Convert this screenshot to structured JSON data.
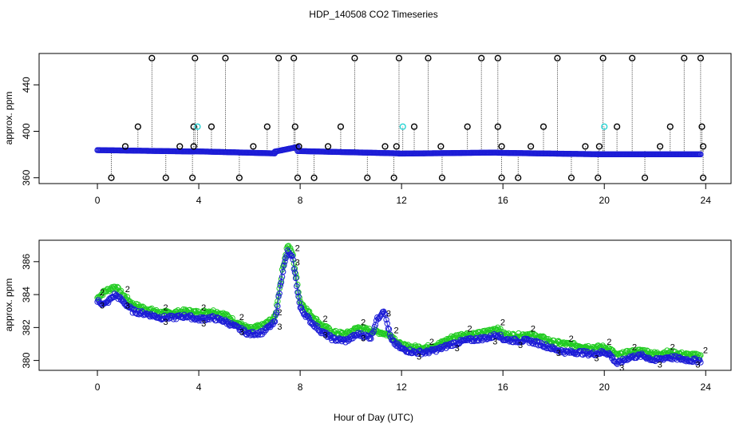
{
  "title": "HDP_140508  CO2 Timeseries",
  "xlabel": "Hour of Day (UTC)",
  "colors": {
    "black": "#000000",
    "blue": "#1c1cd6",
    "green": "#22cc22",
    "cyan": "#29d4d4"
  },
  "chart_data": [
    {
      "type": "scatter",
      "name": "upper-panel",
      "ylabel": "approx. ppm",
      "xlim": [
        -2.3,
        25
      ],
      "ylim": [
        355,
        467
      ],
      "x_ticks": [
        0,
        4,
        8,
        12,
        16,
        20,
        24
      ],
      "y_ticks": [
        360,
        400,
        440
      ],
      "series": [
        {
          "name": "measurement",
          "marker": "circle",
          "color": "#1c1cd6",
          "segments": [
            {
              "x_start": 0.0,
              "x_end": 3.8,
              "start": 383.8,
              "end": 382.6
            },
            {
              "x_start": 3.8,
              "x_end": 7.0,
              "start": 382.8,
              "end": 381.0
            },
            {
              "x_start": 7.0,
              "x_end": 7.9,
              "start": 382.5,
              "end": 386.5
            },
            {
              "x_start": 7.9,
              "x_end": 11.9,
              "start": 383.0,
              "end": 381.0
            },
            {
              "x_start": 11.9,
              "x_end": 15.8,
              "start": 380.8,
              "end": 381.7
            },
            {
              "x_start": 15.8,
              "x_end": 19.9,
              "start": 381.5,
              "end": 380.2
            },
            {
              "x_start": 19.9,
              "x_end": 23.8,
              "start": 380.2,
              "end": 380.2
            }
          ]
        },
        {
          "name": "flag-high",
          "marker": "circle",
          "color": "#000000",
          "x": [
            2.15,
            3.85,
            5.05,
            7.15,
            7.75,
            10.15,
            11.9,
            13.05,
            15.15,
            15.8,
            18.15,
            19.95,
            21.1,
            23.15,
            23.8
          ],
          "value": 463
        },
        {
          "name": "flag-mid",
          "marker": "circle",
          "color": "#000000",
          "x": [
            1.6,
            3.8,
            4.5,
            6.7,
            7.8,
            9.6,
            12.5,
            14.6,
            15.8,
            17.6,
            20.5,
            22.6,
            23.85
          ],
          "value": 404
        },
        {
          "name": "flag-low-mid",
          "marker": "circle",
          "color": "#000000",
          "x": [
            1.1,
            3.25,
            3.8,
            6.15,
            7.95,
            9.1,
            11.35,
            11.8,
            13.55,
            15.95,
            17.1,
            19.25,
            19.8,
            22.2,
            23.9
          ],
          "value": 387
        },
        {
          "name": "flag-low",
          "marker": "circle",
          "color": "#000000",
          "x": [
            0.55,
            2.7,
            3.75,
            5.6,
            7.9,
            8.55,
            10.65,
            11.7,
            13.6,
            15.95,
            16.6,
            18.7,
            19.75,
            21.6,
            23.9
          ],
          "value": 360
        },
        {
          "name": "calibration",
          "marker": "circle",
          "color": "#29d4d4",
          "x": [
            3.95,
            12.05,
            20.0
          ],
          "value": 404
        }
      ]
    },
    {
      "type": "scatter",
      "name": "lower-panel",
      "ylabel": "approx. ppm",
      "xlim": [
        -2.3,
        25
      ],
      "ylim": [
        379.4,
        387.3
      ],
      "x_ticks": [
        0,
        4,
        8,
        12,
        16,
        20,
        24
      ],
      "y_ticks": [
        380,
        382,
        384,
        386
      ],
      "series": [
        {
          "name": "2",
          "marker": "2",
          "color": "#22cc22",
          "points": [
            [
              0.0,
              383.8
            ],
            [
              0.3,
              384.2
            ],
            [
              0.7,
              384.5
            ],
            [
              1.0,
              384.0
            ],
            [
              1.4,
              383.4
            ],
            [
              2.0,
              383.1
            ],
            [
              2.5,
              382.9
            ],
            [
              3.0,
              382.9
            ],
            [
              3.5,
              383.0
            ],
            [
              4.0,
              382.9
            ],
            [
              4.5,
              383.0
            ],
            [
              5.0,
              382.8
            ],
            [
              5.5,
              382.3
            ],
            [
              6.0,
              381.9
            ],
            [
              6.5,
              382.1
            ],
            [
              7.0,
              382.6
            ],
            [
              7.3,
              385.5
            ],
            [
              7.5,
              387.0
            ],
            [
              7.7,
              386.5
            ],
            [
              8.0,
              383.6
            ],
            [
              8.4,
              382.8
            ],
            [
              8.8,
              382.2
            ],
            [
              9.3,
              381.7
            ],
            [
              9.8,
              381.6
            ],
            [
              10.3,
              382.0
            ],
            [
              10.8,
              381.8
            ],
            [
              11.2,
              381.7
            ],
            [
              11.6,
              381.5
            ],
            [
              12.0,
              380.9
            ],
            [
              12.5,
              380.8
            ],
            [
              13.0,
              380.8
            ],
            [
              13.5,
              381.0
            ],
            [
              14.0,
              381.4
            ],
            [
              14.5,
              381.6
            ],
            [
              15.0,
              381.6
            ],
            [
              15.5,
              381.8
            ],
            [
              15.8,
              382.0
            ],
            [
              16.0,
              381.6
            ],
            [
              16.5,
              381.5
            ],
            [
              17.0,
              381.6
            ],
            [
              17.5,
              381.4
            ],
            [
              18.0,
              381.1
            ],
            [
              18.5,
              381.0
            ],
            [
              19.0,
              380.9
            ],
            [
              19.5,
              380.8
            ],
            [
              20.0,
              380.8
            ],
            [
              20.2,
              380.7
            ],
            [
              20.5,
              380.3
            ],
            [
              21.0,
              380.5
            ],
            [
              21.5,
              380.6
            ],
            [
              22.0,
              380.4
            ],
            [
              22.5,
              380.5
            ],
            [
              23.0,
              380.4
            ],
            [
              23.5,
              380.3
            ],
            [
              23.8,
              380.3
            ]
          ]
        },
        {
          "name": "3",
          "marker": "3",
          "color": "#1c1cd6",
          "points": [
            [
              0.0,
              383.6
            ],
            [
              0.3,
              383.4
            ],
            [
              0.7,
              384.0
            ],
            [
              1.0,
              383.6
            ],
            [
              1.4,
              383.0
            ],
            [
              2.0,
              382.8
            ],
            [
              2.5,
              382.6
            ],
            [
              3.0,
              382.6
            ],
            [
              3.5,
              382.7
            ],
            [
              4.0,
              382.5
            ],
            [
              4.5,
              382.6
            ],
            [
              5.0,
              382.4
            ],
            [
              5.5,
              382.0
            ],
            [
              6.0,
              381.6
            ],
            [
              6.5,
              381.7
            ],
            [
              7.0,
              382.3
            ],
            [
              7.3,
              385.3
            ],
            [
              7.5,
              386.6
            ],
            [
              7.7,
              386.2
            ],
            [
              8.0,
              383.2
            ],
            [
              8.4,
              382.4
            ],
            [
              8.8,
              381.8
            ],
            [
              9.3,
              381.3
            ],
            [
              9.8,
              381.2
            ],
            [
              10.3,
              381.6
            ],
            [
              10.8,
              381.4
            ],
            [
              11.0,
              382.4
            ],
            [
              11.3,
              383.1
            ],
            [
              11.6,
              381.2
            ],
            [
              12.0,
              380.7
            ],
            [
              12.5,
              380.5
            ],
            [
              13.0,
              380.5
            ],
            [
              13.5,
              380.7
            ],
            [
              14.0,
              381.0
            ],
            [
              14.5,
              381.2
            ],
            [
              15.0,
              381.3
            ],
            [
              15.5,
              381.4
            ],
            [
              15.8,
              381.6
            ],
            [
              16.0,
              381.3
            ],
            [
              16.5,
              381.2
            ],
            [
              17.0,
              381.2
            ],
            [
              17.5,
              381.0
            ],
            [
              18.0,
              380.7
            ],
            [
              18.5,
              380.5
            ],
            [
              19.0,
              380.5
            ],
            [
              19.5,
              380.4
            ],
            [
              20.0,
              380.5
            ],
            [
              20.2,
              380.4
            ],
            [
              20.5,
              379.8
            ],
            [
              21.0,
              380.2
            ],
            [
              21.5,
              380.3
            ],
            [
              22.0,
              380.0
            ],
            [
              22.5,
              380.2
            ],
            [
              23.0,
              380.1
            ],
            [
              23.5,
              380.0
            ],
            [
              23.8,
              380.0
            ]
          ]
        }
      ]
    }
  ]
}
